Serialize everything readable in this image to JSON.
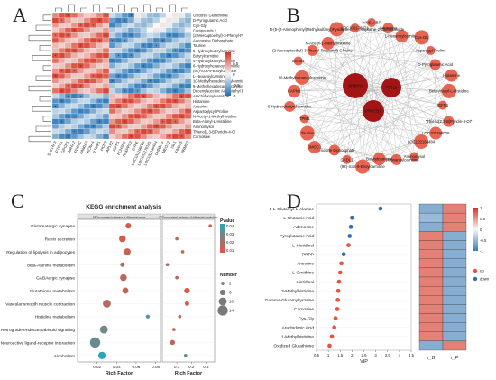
{
  "panels": {
    "a": "A",
    "b": "B",
    "c": "C",
    "d": "D"
  },
  "heatmap": {
    "rows": [
      "Oxidized Glutathione",
      "D-Pyroglutamic Acid",
      "Cys-Gly",
      "Compounds 1",
      "(2-Mercaptoethyl)-3-Phenyl-Propionyl)-Glycine",
      "Adenosine Diphosphate",
      "Taurine",
      "5-Hydroxybutyrylcarnitine",
      "Butyrylcarnitine",
      "4-Hydroxybutyrylcarnitine",
      "6-Hydroxyhexanoylcarnitine",
      "(9Z)-Icos-9-Enoylcarnitine",
      "L-Hexanoylcarnitine",
      "10-Methylhexadecanoylcarnitine",
      "9-Methylhexadecanoylcarnitine",
      "Decenylsuccinic Acid Methyl Ester",
      "Arachidonoylcarnitine",
      "Histamine",
      "Anserine",
      "Aspartoglycyl-Proline",
      "N-Acetyl-1-Methylhistidine",
      "Beta-Alanyl-L-Histidine",
      "Aminomysol",
      "Thieno[2,3-B]Pyridin-4-Ol",
      "Carnosine"
    ],
    "cols": [
      "SLC14A3",
      "PTGS1",
      "GPCR1",
      "NR4A2",
      "PDE4C",
      "FAM163",
      "KCNA4",
      "ILRAP1",
      "HCN2",
      "APLP2",
      "IGFN1",
      "FCHSD1",
      "TRAPPC3",
      "GYPE",
      "LOC102198026",
      "LOC102178101",
      "LOC102168484",
      "CHRNA5",
      "MEOX2",
      "ISL1",
      "FNDC5",
      "ARMC2"
    ],
    "legend_ticks": [
      "1",
      "0.5",
      "0",
      "-0.5",
      "-1"
    ],
    "colors": {
      "high": "#d7301f",
      "mid": "#f7f7f7",
      "low": "#2171b5"
    }
  },
  "network": {
    "nodes": [
      "IVNS1ABP",
      "Carnosine",
      "L-Hexanoylcarnitine",
      "Cys-Gly",
      "Asparagyl-Proline",
      "D-Pyroglutamic Acid",
      "Histamine",
      "Beta-Alanyl-L-Histidine",
      "IGFN1",
      "\"Thieno[2,3-B]Pyridin-4-Ol\"",
      "LOC102198026",
      "LOC102168484",
      "Aminomysol",
      "8-Methylnonanoylcarnitine",
      "MYBPH",
      "FSTL5",
      "Butyrylcarnitine",
      "(9Z)-Icos-9-Enoylcarnitine",
      "GADL1",
      "Adenosine Diphosphate",
      "PRKCB1",
      "SMOC1",
      "Taurine",
      "TPM1",
      "5-Hydroxybutyrylcarnitine",
      "CAPN1",
      "10-Methylnonanoylcarnitine",
      "SNTB1",
      "(2-Mercaptoethyl)-3-Phenyl-Propionyl)-Glycine",
      "N-Acetyl-1-Methylhistidine",
      "N-(5-(2-Aminophenyl)Methylsulfanyl)Pyridazin-3-Yl)Thiophene-2-Carboxamide",
      "LOC102175871"
    ],
    "node_color": "#e8533f",
    "hub_color": "#a31515"
  },
  "kegg": {
    "title": "KEGG enrichment analysis",
    "left_strip": "DEGs-correlated pathways of differential genes",
    "right_strip": "DEGs-correlated pathways of differential metabolites",
    "xlabel": "Rich Factor",
    "pathways": [
      "Glutamatergic synapse",
      "Renin secretion",
      "Regulation of lipolysis in adipocytes",
      "beta-Alanine metabolism",
      "GABAergic synapse",
      "Glutathione metabolism",
      "Vascular smooth muscle contraction",
      "Histidine metabolism",
      "Retrograde endocannabinoid signaling",
      "Neuroactive ligand-receptor interaction",
      "Alcoholism"
    ],
    "left_ticks": [
      "0.02",
      "0.04",
      "0.06",
      "0.08"
    ],
    "right_ticks": [
      "0.1",
      "0.2",
      "0.3"
    ],
    "pvalue_title": "Pvalue",
    "pvalue_ticks": [
      "0.04",
      "0.03",
      "0.02",
      "0.01"
    ],
    "number_title": "Number",
    "number_ticks": [
      "2",
      "6",
      "10",
      "14"
    ],
    "left_points": [
      {
        "x": 0.052,
        "n": 6,
        "p": 0.005
      },
      {
        "x": 0.046,
        "n": 8,
        "p": 0.006
      },
      {
        "x": 0.051,
        "n": 8,
        "p": 0.007
      },
      {
        "x": 0.046,
        "n": 4,
        "p": 0.012
      },
      {
        "x": 0.047,
        "n": 8,
        "p": 0.01
      },
      {
        "x": 0.049,
        "n": 7,
        "p": 0.009
      },
      {
        "x": 0.03,
        "n": 10,
        "p": 0.012
      },
      {
        "x": 0.072,
        "n": 3,
        "p": 0.035
      },
      {
        "x": 0.027,
        "n": 10,
        "p": 0.028
      },
      {
        "x": 0.018,
        "n": 14,
        "p": 0.03
      },
      {
        "x": 0.025,
        "n": 9,
        "p": 0.045
      }
    ],
    "right_points": [
      {
        "x": 0.33,
        "n": 2,
        "p": 0.004
      },
      {
        "x": 0.1,
        "n": 2,
        "p": 0.015
      },
      {
        "x": 0.14,
        "n": 2,
        "p": 0.008
      },
      {
        "x": 0.035,
        "n": 2,
        "p": 0.018
      },
      {
        "x": 0.1,
        "n": 2,
        "p": 0.012
      },
      {
        "x": 0.17,
        "n": 6,
        "p": 0.005
      },
      {
        "x": 0.17,
        "n": 4,
        "p": 0.006
      },
      {
        "x": 0.12,
        "n": 2,
        "p": 0.014
      },
      {
        "x": 0.08,
        "n": 2,
        "p": 0.011
      },
      {
        "x": 0.07,
        "n": 5,
        "p": 0.01
      },
      {
        "x": 0.16,
        "n": 2,
        "p": 0.032
      }
    ]
  },
  "vip": {
    "xlabel": "VIP",
    "ticks": [
      "0.5",
      "1",
      "1.5",
      "2",
      "2.5",
      "3",
      "3.5",
      "4",
      "4.5"
    ],
    "legend": [
      {
        "label": "up",
        "color": "#e8533f"
      },
      {
        "label": "down",
        "color": "#2f6fb0"
      }
    ],
    "heat_cols": [
      "r_B",
      "r_P"
    ],
    "heat_ticks": [
      "1",
      "0.5",
      "0",
      "-0.5",
      "-1"
    ]
  },
  "chart_data": [
    {
      "type": "scatter",
      "title": "",
      "xlabel": "VIP",
      "xlim": [
        0.5,
        4.5
      ],
      "categories": [
        "5-L-Glutamyl-L-Alanine",
        "L-Glutamic Acid",
        "Adenosine",
        "Pyroglutamic Acid",
        "L-Histidinol",
        "PRPP",
        "Anserine",
        "L-Ornithine",
        "Histidinal",
        "3-Methylhistidine",
        "Gamma-Glutamyltyrosine",
        "Carnosine",
        "Cys-Gly",
        "Arachidonic Acid",
        "1-Methylhistidine",
        "Oxidized Glutathione"
      ],
      "values": [
        3.2,
        2.0,
        1.95,
        1.9,
        1.85,
        1.65,
        1.55,
        1.5,
        1.45,
        1.42,
        1.4,
        1.38,
        1.3,
        1.25,
        1.15,
        1.05
      ],
      "direction": [
        "down",
        "down",
        "down",
        "down",
        "up",
        "down",
        "up",
        "up",
        "up",
        "up",
        "up",
        "up",
        "up",
        "up",
        "up",
        "up"
      ],
      "heat_rB": [
        -0.6,
        -0.5,
        -0.6,
        0.6,
        0.6,
        0.6,
        0.6,
        0.6,
        0.6,
        0.6,
        0.6,
        0.6,
        0.6,
        0.6,
        0.6,
        -0.6
      ],
      "heat_rP": [
        0.6,
        0.6,
        0.6,
        -0.6,
        -0.6,
        -0.6,
        -0.6,
        -0.6,
        -0.6,
        -0.6,
        -0.6,
        -0.6,
        -0.6,
        -0.6,
        -0.6,
        0.6
      ]
    }
  ]
}
